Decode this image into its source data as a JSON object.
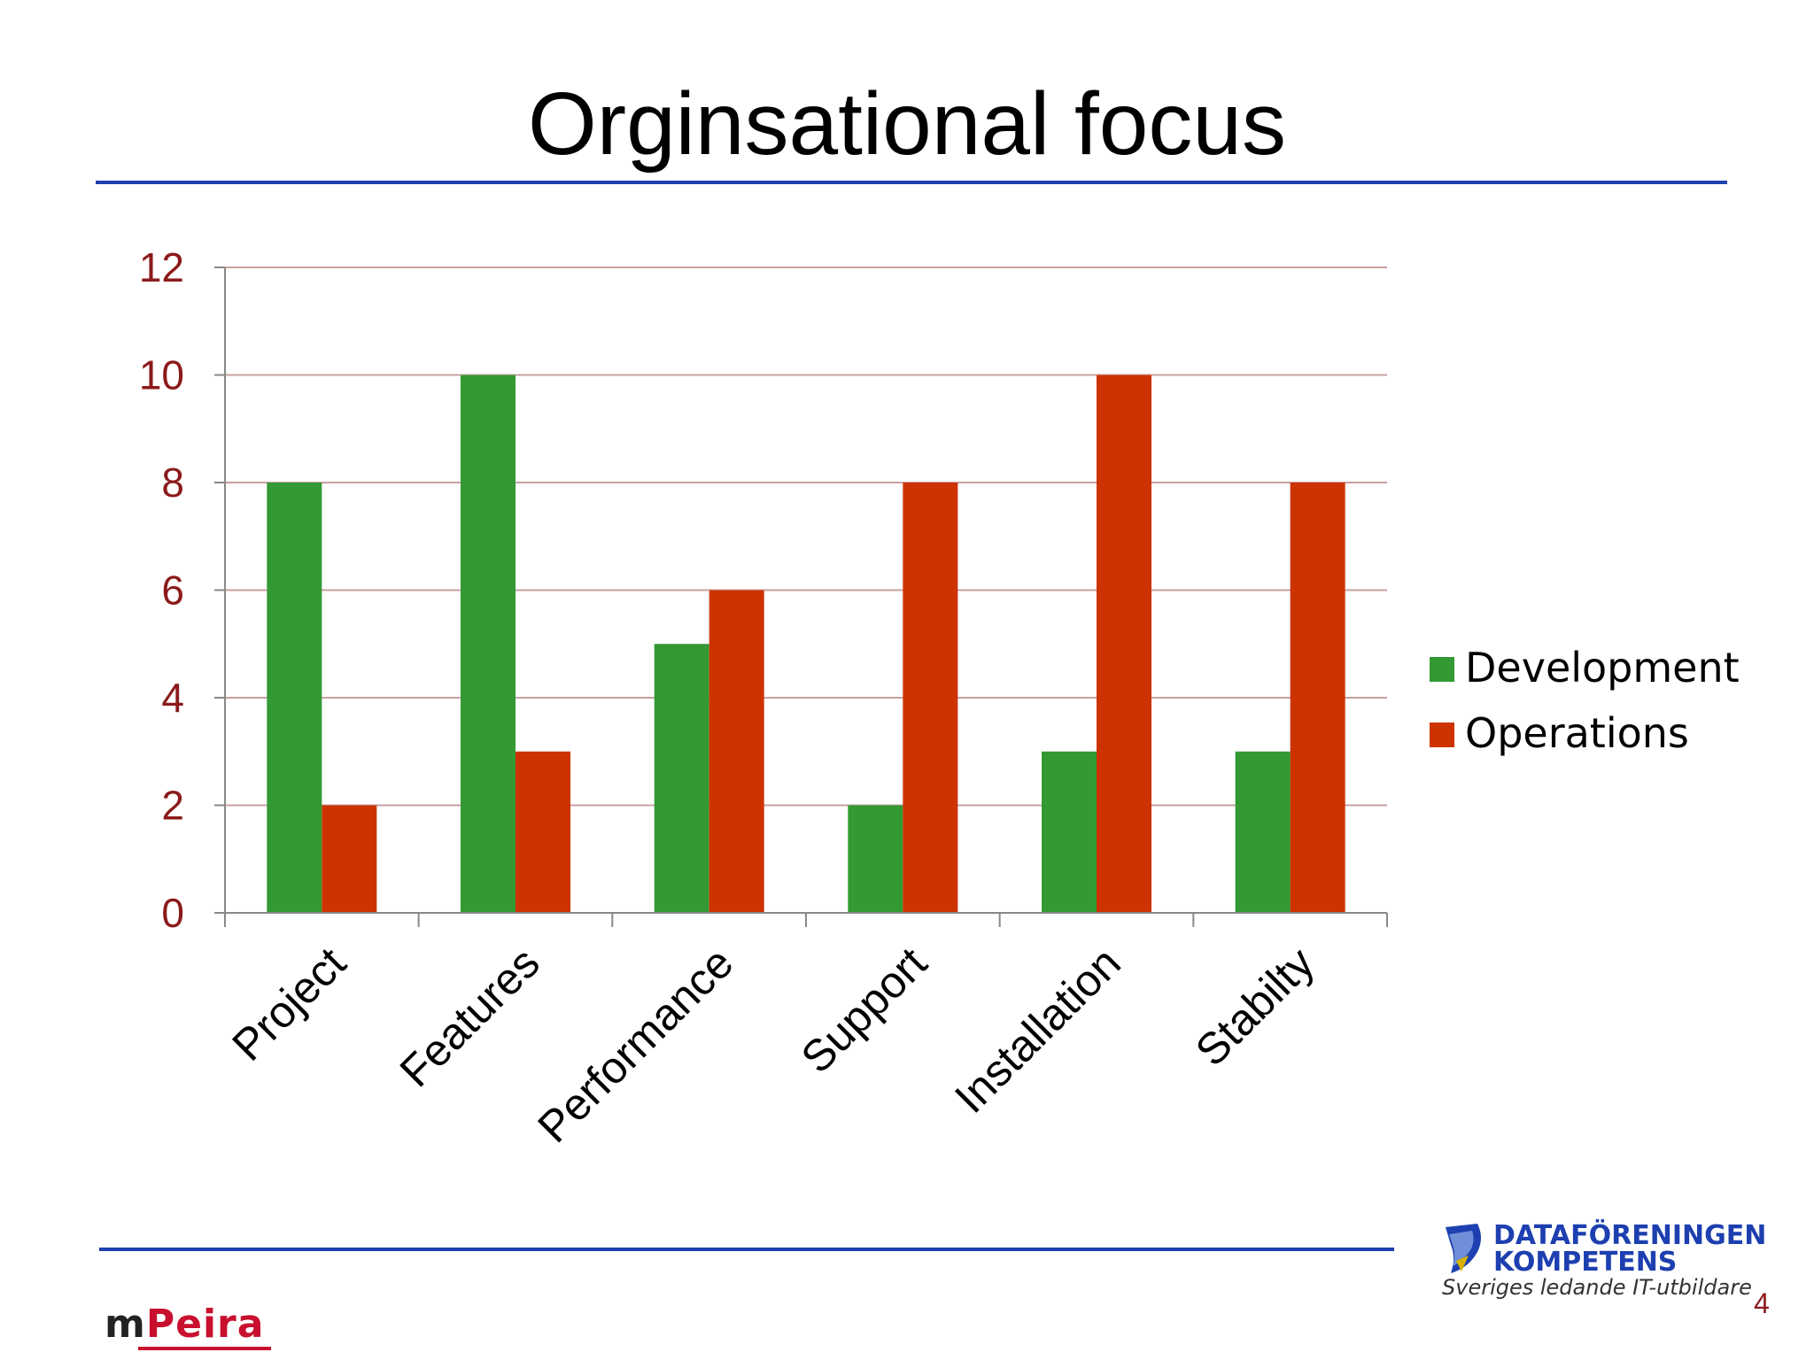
{
  "slide": {
    "title": "Orginsational focus",
    "page_number": "4"
  },
  "branding": {
    "left_logo_prefix": "m",
    "left_logo_accent": "Peira",
    "right_logo_line1": "DATAFÖRENINGEN",
    "right_logo_line2": "KOMPETENS",
    "right_logo_tagline": "Sveriges ledande IT-utbildare"
  },
  "colors": {
    "development": "#339933",
    "operations": "#cc3300",
    "axis_ticks": "#8b1a1a",
    "rule": "#1d3fb0",
    "grid": "#c8a0a0"
  },
  "chart_data": {
    "type": "bar",
    "title": "",
    "xlabel": "",
    "ylabel": "",
    "categories": [
      "Project",
      "Features",
      "Performance",
      "Support",
      "Installation",
      "Stabilty"
    ],
    "series": [
      {
        "name": "Development",
        "values": [
          8,
          10,
          5,
          2,
          3,
          3
        ]
      },
      {
        "name": "Operations",
        "values": [
          2,
          3,
          6,
          8,
          10,
          8
        ]
      }
    ],
    "ylim": [
      0,
      12
    ],
    "yticks": [
      "0",
      "2",
      "4",
      "6",
      "8",
      "10",
      "12"
    ],
    "grid": true,
    "legend": "right"
  }
}
